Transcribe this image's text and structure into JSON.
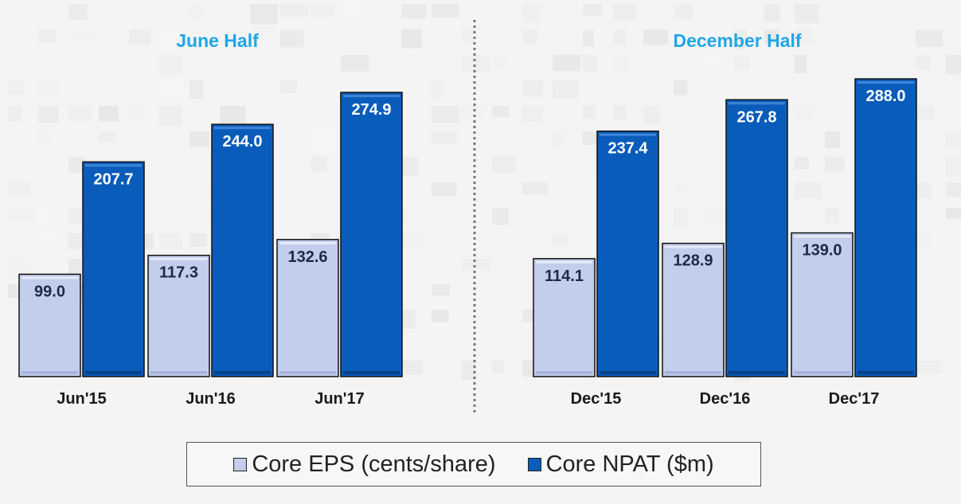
{
  "chart_data": [
    {
      "type": "bar",
      "title": "June Half",
      "categories": [
        "Jun'15",
        "Jun'16",
        "Jun'17"
      ],
      "series": [
        {
          "name": "Core EPS (cents/share)",
          "values": [
            99.0,
            117.3,
            132.6
          ]
        },
        {
          "name": "Core NPAT ($m)",
          "values": [
            207.7,
            244.0,
            274.9
          ]
        }
      ],
      "ylim": [
        0,
        300
      ],
      "grid": false,
      "xlabel": "",
      "ylabel": ""
    },
    {
      "type": "bar",
      "title": "December Half",
      "categories": [
        "Dec'15",
        "Dec'16",
        "Dec'17"
      ],
      "series": [
        {
          "name": "Core EPS (cents/share)",
          "values": [
            114.1,
            128.9,
            139.0
          ]
        },
        {
          "name": "Core NPAT ($m)",
          "values": [
            237.4,
            267.8,
            288.0
          ]
        }
      ],
      "ylim": [
        0,
        300
      ],
      "grid": false,
      "xlabel": "",
      "ylabel": ""
    }
  ],
  "legend": {
    "position": "bottom",
    "items": [
      {
        "label": "Core EPS (cents/share)",
        "color": "#c3cdec"
      },
      {
        "label": "Core NPAT ($m)",
        "color": "#0a5cba"
      }
    ]
  },
  "colors": {
    "title": "#1fa6e6",
    "eps_fill": "#c3cdec",
    "npat_fill": "#0a5cba",
    "eps_label": "#1a2a4a",
    "npat_label": "#ffffff",
    "divider": "#777777"
  }
}
